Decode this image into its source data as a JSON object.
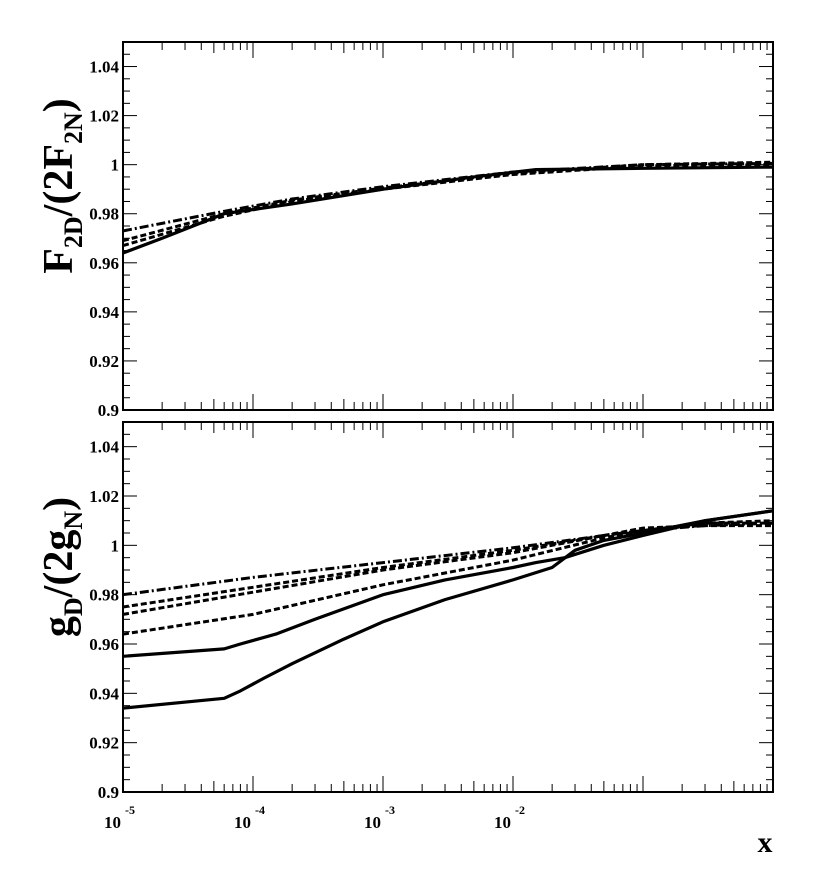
{
  "chart_data": [
    {
      "type": "line",
      "name": "top-panel",
      "ylabel": {
        "main": "F",
        "sub1": "2D",
        "mid": "/(2F",
        "sub2": "2N",
        "end": ")"
      },
      "xscale": "log",
      "xlim": [
        1e-05,
        1
      ],
      "ylim": [
        0.9,
        1.05
      ],
      "yticks": [
        0.9,
        0.92,
        0.94,
        0.96,
        0.98,
        1,
        1.02,
        1.04
      ],
      "ytick_labels": [
        "0.9",
        "0.92",
        "0.94",
        "0.96",
        "0.98",
        "1",
        "1.02",
        "1.04"
      ],
      "series": [
        {
          "name": "solid",
          "style": "solid",
          "x": [
            1e-05,
            2e-05,
            6e-05,
            0.0002,
            0.001,
            0.005,
            0.015,
            0.1,
            1
          ],
          "y": [
            0.964,
            0.97,
            0.98,
            0.984,
            0.99,
            0.995,
            0.998,
            0.9985,
            0.999
          ]
        },
        {
          "name": "dashed-a",
          "style": "dashed",
          "x": [
            1e-05,
            6e-05,
            0.0002,
            0.001,
            0.01,
            0.1,
            1
          ],
          "y": [
            0.967,
            0.979,
            0.985,
            0.99,
            0.996,
            0.9995,
            1.0
          ]
        },
        {
          "name": "dashed-b",
          "style": "dashed",
          "x": [
            1e-05,
            6e-05,
            0.0002,
            0.001,
            0.01,
            0.1,
            1
          ],
          "y": [
            0.969,
            0.98,
            0.9855,
            0.9905,
            0.9965,
            1.0,
            1.001
          ]
        },
        {
          "name": "dashdot",
          "style": "dashdot",
          "x": [
            1e-05,
            6e-05,
            0.0002,
            0.001,
            0.01,
            0.1,
            1
          ],
          "y": [
            0.973,
            0.981,
            0.986,
            0.991,
            0.997,
            1.0,
            1.0005
          ]
        }
      ]
    },
    {
      "type": "line",
      "name": "bottom-panel",
      "ylabel": {
        "main": "g",
        "sub1": "D",
        "mid": "/(2g",
        "sub2": "N",
        "end": ")"
      },
      "xscale": "log",
      "xlim": [
        1e-05,
        1
      ],
      "ylim": [
        0.9,
        1.05
      ],
      "yticks": [
        0.9,
        0.92,
        0.94,
        0.96,
        0.98,
        1,
        1.02,
        1.04
      ],
      "ytick_labels": [
        "0.9",
        "0.92",
        "0.94",
        "0.96",
        "0.98",
        "1",
        "1.02",
        "1.04"
      ],
      "xtick_labels": [
        {
          "base": "10",
          "exp": "-5"
        },
        {
          "base": "10",
          "exp": "-4"
        },
        {
          "base": "10",
          "exp": "-3"
        },
        {
          "base": "10",
          "exp": "-2"
        }
      ],
      "xlabel": "x",
      "series": [
        {
          "name": "solid-upper",
          "style": "solid",
          "x": [
            1e-05,
            6e-05,
            8e-05,
            0.00015,
            0.0003,
            0.001,
            0.003,
            0.01,
            0.015,
            0.025,
            0.05,
            0.1,
            0.3,
            1
          ],
          "y": [
            0.955,
            0.958,
            0.96,
            0.964,
            0.97,
            0.98,
            0.986,
            0.991,
            0.993,
            0.995,
            1.0,
            1.004,
            1.01,
            1.014
          ]
        },
        {
          "name": "solid-lower",
          "style": "solid",
          "x": [
            1e-05,
            6e-05,
            8e-05,
            0.00012,
            0.0002,
            0.0005,
            0.001,
            0.003,
            0.01,
            0.02,
            0.03,
            0.05,
            0.1,
            0.3,
            1
          ],
          "y": [
            0.934,
            0.938,
            0.941,
            0.946,
            0.952,
            0.962,
            0.969,
            0.978,
            0.986,
            0.991,
            0.998,
            1.002,
            1.005,
            1.01,
            1.014
          ]
        },
        {
          "name": "dashed-lower",
          "style": "dashed",
          "x": [
            1e-05,
            0.0001,
            0.001,
            0.01,
            0.05,
            0.1,
            0.3,
            1
          ],
          "y": [
            0.964,
            0.972,
            0.984,
            0.994,
            1.003,
            1.006,
            1.009,
            1.009
          ]
        },
        {
          "name": "dashed-mid",
          "style": "dashed",
          "x": [
            1e-05,
            0.0001,
            0.001,
            0.01,
            0.05,
            0.1,
            0.3,
            1
          ],
          "y": [
            0.972,
            0.981,
            0.99,
            0.997,
            1.004,
            1.006,
            1.009,
            1.01
          ]
        },
        {
          "name": "dashed-upper",
          "style": "dashed",
          "x": [
            1e-05,
            0.0001,
            0.001,
            0.01,
            0.05,
            0.1,
            0.3,
            1
          ],
          "y": [
            0.975,
            0.983,
            0.991,
            0.998,
            1.004,
            1.007,
            1.008,
            1.008
          ]
        },
        {
          "name": "dashdot",
          "style": "dashdot",
          "x": [
            1e-05,
            0.0001,
            0.001,
            0.01,
            0.05,
            0.1,
            0.3,
            1
          ],
          "y": [
            0.98,
            0.987,
            0.993,
            0.999,
            1.004,
            1.006,
            1.008,
            1.009
          ]
        }
      ]
    }
  ]
}
